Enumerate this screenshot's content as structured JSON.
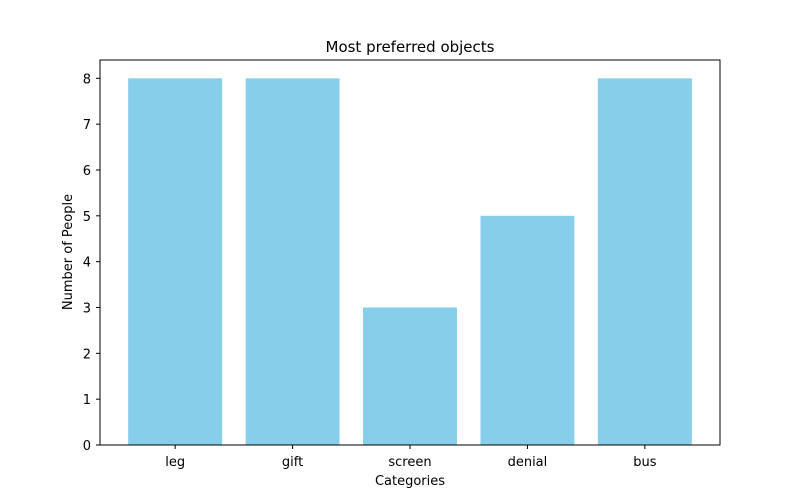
{
  "chart_data": {
    "type": "bar",
    "title": "Most preferred objects",
    "xlabel": "Categories",
    "ylabel": "Number of People",
    "categories": [
      "leg",
      "gift",
      "screen",
      "denial",
      "bus"
    ],
    "values": [
      8,
      8,
      3,
      5,
      8
    ],
    "ylim": [
      0,
      8.4
    ],
    "yticks": [
      0,
      1,
      2,
      3,
      4,
      5,
      6,
      7,
      8
    ],
    "grid": false,
    "bar_color": "#87ceeb"
  }
}
